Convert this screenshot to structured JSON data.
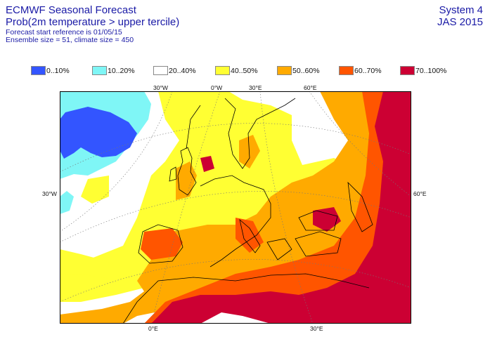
{
  "header": {
    "title": "ECMWF Seasonal Forecast",
    "subtitle": "Prob(2m temperature > upper tercile)",
    "start_ref": "Forecast start reference is 01/05/15",
    "ensemble": "Ensemble size = 51, climate size = 450"
  },
  "system": {
    "name": "System 4",
    "season": "JAS 2015"
  },
  "legend": [
    {
      "label": "0..10%",
      "color": "#3355ff"
    },
    {
      "label": "10..20%",
      "color": "#7ff6f6"
    },
    {
      "label": "20..40%",
      "color": "#ffffff"
    },
    {
      "label": "40..50%",
      "color": "#ffff33"
    },
    {
      "label": "50..60%",
      "color": "#ffaa00"
    },
    {
      "label": "60..70%",
      "color": "#ff5500"
    },
    {
      "label": "70..100%",
      "color": "#cc0033"
    }
  ],
  "map": {
    "top_labels": [
      "30°W",
      "0°W",
      "30°E",
      "60°E"
    ],
    "left_label": "30°W",
    "right_label": "60°E",
    "bottom_labels": [
      "0°E",
      "30°E"
    ]
  }
}
